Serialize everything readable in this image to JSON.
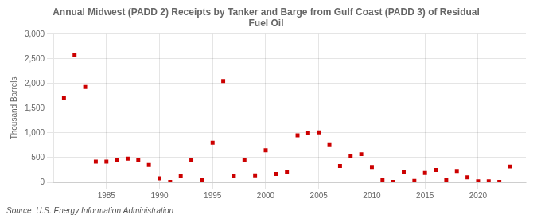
{
  "chart_data": {
    "type": "scatter",
    "title": "Annual Midwest (PADD 2) Receipts by Tanker and Barge from Gulf Coast (PADD 3) of Residual\nFuel Oil",
    "ylabel": "Thousand Barrels",
    "source": "Source: U.S. Energy Information Administration",
    "color": "#cc0000",
    "marker": "square",
    "grid": true,
    "xlim": [
      1980,
      2024.5
    ],
    "xticks": [
      1985,
      1990,
      1995,
      2000,
      2005,
      2010,
      2015,
      2020
    ],
    "ylim": [
      0,
      3000
    ],
    "yticks": [
      0,
      500,
      {
        "value": 1000,
        "label": "1,000"
      },
      {
        "value": 1500,
        "label": "1,500"
      },
      {
        "value": 2000,
        "label": "2,000"
      },
      {
        "value": 2500,
        "label": "2,500"
      },
      {
        "value": 3000,
        "label": "3,000"
      }
    ],
    "x": [
      1981,
      1982,
      1983,
      1984,
      1985,
      1986,
      1987,
      1988,
      1989,
      1990,
      1991,
      1992,
      1993,
      1994,
      1995,
      1996,
      1997,
      1998,
      1999,
      2000,
      2001,
      2002,
      2003,
      2004,
      2005,
      2006,
      2007,
      2008,
      2009,
      2010,
      2011,
      2012,
      2013,
      2014,
      2015,
      2016,
      2017,
      2018,
      2019,
      2020,
      2021,
      2022,
      2023
    ],
    "values": [
      1700,
      2580,
      1930,
      420,
      420,
      450,
      480,
      450,
      350,
      80,
      10,
      120,
      460,
      50,
      800,
      2050,
      120,
      450,
      140,
      650,
      170,
      200,
      950,
      990,
      1010,
      770,
      330,
      530,
      570,
      310,
      50,
      10,
      210,
      30,
      190,
      250,
      50,
      230,
      100,
      20,
      20,
      10,
      320
    ]
  }
}
